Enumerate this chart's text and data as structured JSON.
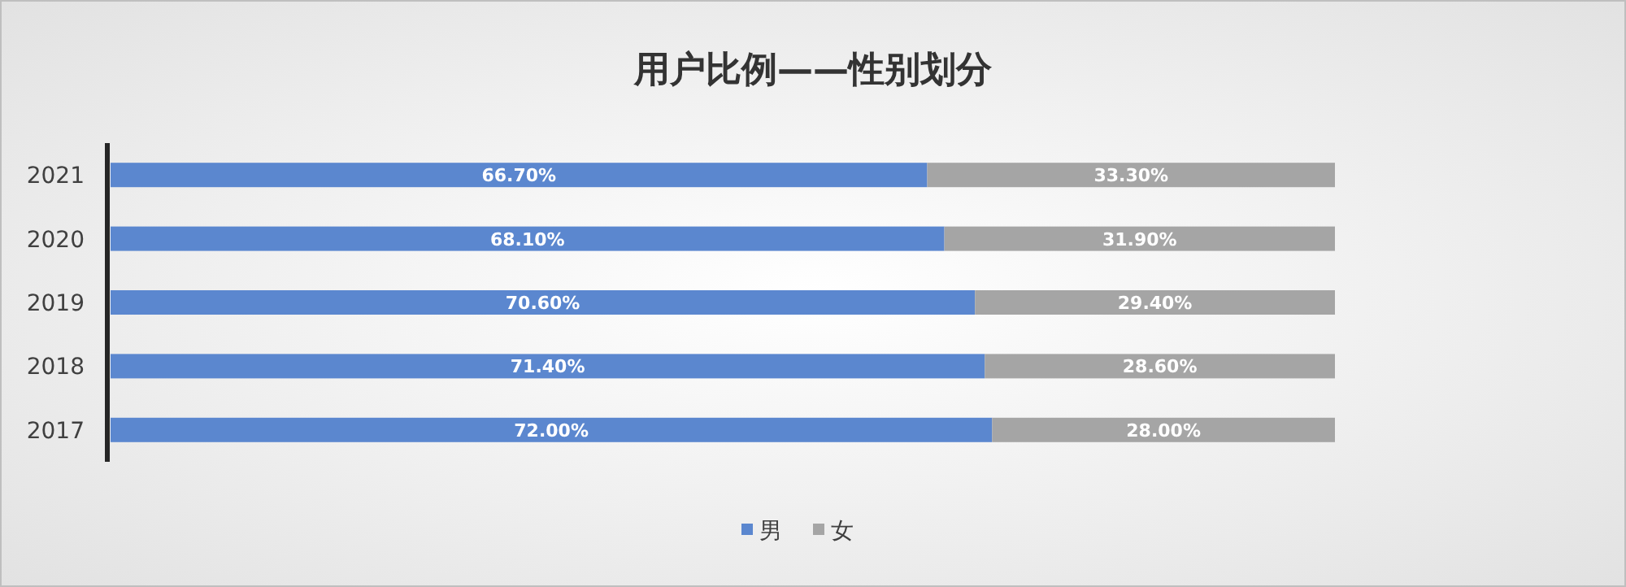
{
  "chart_data": {
    "type": "bar",
    "title": "用户比例——性别划分",
    "orientation": "horizontal",
    "stacked": true,
    "legend": "bottom",
    "categories": [
      "2021",
      "2020",
      "2019",
      "2018",
      "2017"
    ],
    "series": [
      {
        "name": "男",
        "color": "#5b87cf",
        "values": [
          66.7,
          68.1,
          70.6,
          71.4,
          72.0
        ],
        "value_labels": [
          "66.70%",
          "68.10%",
          "70.60%",
          "71.40%",
          "72.00%"
        ]
      },
      {
        "name": "女",
        "color": "#a5a5a5",
        "values": [
          33.3,
          31.9,
          29.4,
          28.6,
          28.0
        ],
        "value_labels": [
          "33.30%",
          "31.90%",
          "29.40%",
          "28.60%",
          "28.00%"
        ]
      }
    ]
  }
}
